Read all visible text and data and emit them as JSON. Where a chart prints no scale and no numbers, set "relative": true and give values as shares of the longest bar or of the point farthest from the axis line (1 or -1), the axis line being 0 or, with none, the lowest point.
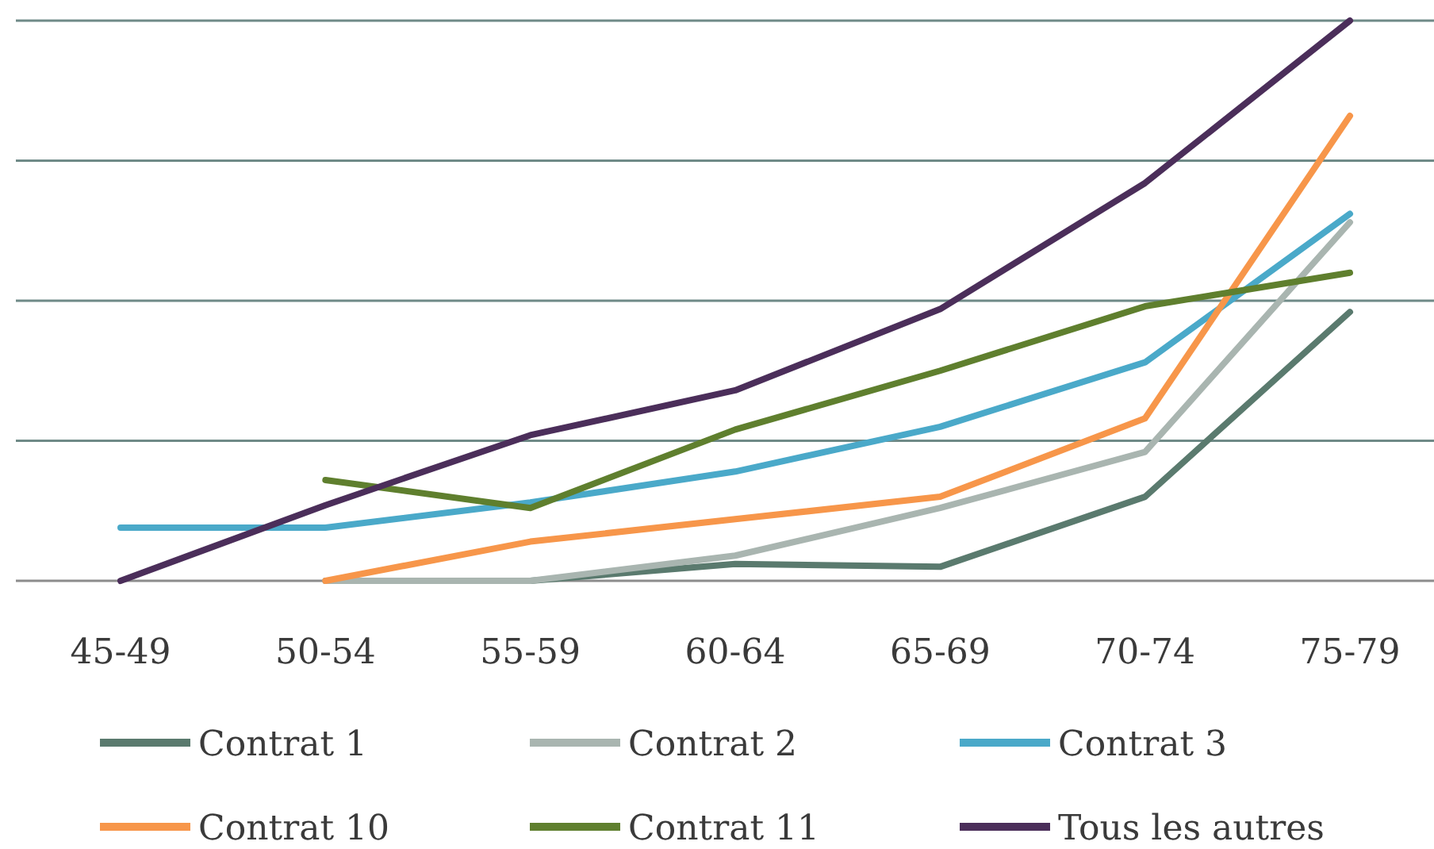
{
  "chart_data": {
    "type": "line",
    "relative": true,
    "categories": [
      "45-49",
      "50-54",
      "55-59",
      "60-64",
      "65-69",
      "70-74",
      "75-79"
    ],
    "series": [
      {
        "name": "Contrat 1",
        "color": "#5a7a6e",
        "values": [
          null,
          0,
          0,
          0.03,
          0.025,
          0.15,
          0.48
        ]
      },
      {
        "name": "Contrat 2",
        "color": "#a9b5b0",
        "values": [
          null,
          0,
          0,
          0.045,
          0.13,
          0.23,
          0.64
        ]
      },
      {
        "name": "Contrat 3",
        "color": "#4aa9c9",
        "values": [
          0.095,
          0.095,
          0.14,
          0.195,
          0.275,
          0.39,
          0.655
        ]
      },
      {
        "name": "Contrat 10",
        "color": "#f7964a",
        "values": [
          null,
          0,
          0.07,
          0.11,
          0.15,
          0.29,
          0.83
        ]
      },
      {
        "name": "Contrat 11",
        "color": "#5f7f2e",
        "values": [
          null,
          0.18,
          0.13,
          0.27,
          0.375,
          0.49,
          0.55
        ]
      },
      {
        "name": "Tous les autres",
        "color": "#4b2e5a",
        "values": [
          0,
          0.135,
          0.26,
          0.34,
          0.485,
          0.71,
          1
        ]
      }
    ],
    "grid": "y",
    "legend": "bottom",
    "line_style": "solid",
    "marker": "none"
  }
}
